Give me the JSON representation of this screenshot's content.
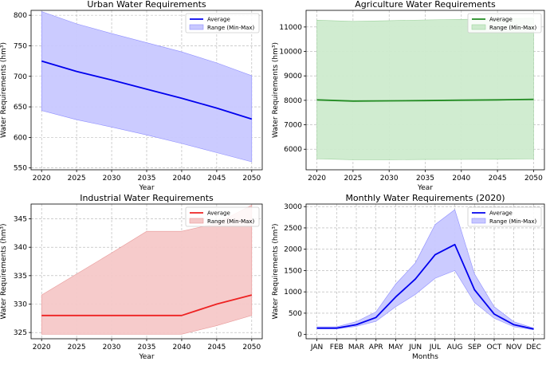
{
  "chart_data": [
    {
      "type": "line",
      "title": "Urban Water Requirements",
      "xlabel": "Year",
      "ylabel": "Water Requirements (hm³)",
      "x": [
        2020,
        2025,
        2030,
        2035,
        2040,
        2045,
        2050
      ],
      "xticks": [
        "2020",
        "2025",
        "2030",
        "2035",
        "2040",
        "2045",
        "2050"
      ],
      "yticks": [
        550,
        600,
        650,
        700,
        750,
        800
      ],
      "xlim": [
        2018.5,
        2051.5
      ],
      "ylim": [
        547,
        808
      ],
      "series": [
        {
          "name": "Average",
          "kind": "line",
          "values": [
            725,
            708,
            694,
            679,
            664,
            648,
            630
          ]
        },
        {
          "name": "Range (Min-Max)",
          "kind": "band",
          "min": [
            644,
            629,
            617,
            604,
            590,
            575,
            560
          ],
          "max": [
            806,
            786,
            770,
            755,
            740,
            722,
            701
          ]
        }
      ],
      "colors": {
        "line": "#0000ee",
        "band": "#c8c8ff",
        "band_edge": "#8f8fff"
      }
    },
    {
      "type": "line",
      "title": "Agriculture Water Requirements",
      "xlabel": "Year",
      "ylabel": "Water Requirements (hm³)",
      "x": [
        2020,
        2025,
        2030,
        2035,
        2040,
        2045,
        2050
      ],
      "xticks": [
        "2020",
        "2025",
        "2030",
        "2035",
        "2040",
        "2045",
        "2050"
      ],
      "yticks": [
        6000,
        7000,
        8000,
        9000,
        10000,
        11000
      ],
      "xlim": [
        2018.5,
        2051.5
      ],
      "ylim": [
        5160,
        11680
      ],
      "series": [
        {
          "name": "Average",
          "kind": "line",
          "values": [
            8020,
            7970,
            7980,
            7990,
            8005,
            8020,
            8040
          ]
        },
        {
          "name": "Range (Min-Max)",
          "kind": "band",
          "min": [
            5610,
            5570,
            5570,
            5580,
            5585,
            5590,
            5600
          ],
          "max": [
            11280,
            11230,
            11260,
            11290,
            11310,
            11330,
            11360
          ]
        }
      ],
      "colors": {
        "line": "#228b22",
        "band": "#cdebcd",
        "band_edge": "#9ed29e"
      }
    },
    {
      "type": "line",
      "title": "Industrial Water Requirements",
      "xlabel": "Year",
      "ylabel": "Water Requirements (hm³)",
      "x": [
        2020,
        2025,
        2030,
        2035,
        2040,
        2045,
        2050
      ],
      "xticks": [
        "2020",
        "2025",
        "2030",
        "2035",
        "2040",
        "2045",
        "2050"
      ],
      "yticks": [
        325,
        330,
        335,
        340,
        345
      ],
      "xlim": [
        2018.5,
        2051.5
      ],
      "ylim": [
        323.9,
        347.6
      ],
      "series": [
        {
          "name": "Average",
          "kind": "line",
          "values": [
            328,
            328,
            328,
            328,
            328,
            330,
            331.6
          ]
        },
        {
          "name": "Range (Min-Max)",
          "kind": "band",
          "min": [
            324.7,
            324.7,
            324.7,
            324.7,
            324.7,
            326.2,
            328
          ],
          "max": [
            331.6,
            335.3,
            339,
            342.8,
            342.8,
            344.2,
            347.4
          ]
        }
      ],
      "colors": {
        "line": "#ee2222",
        "band": "#f5c8c8",
        "band_edge": "#e89a9a"
      }
    },
    {
      "type": "line",
      "title": "Monthly Water Requirements (2020)",
      "xlabel": "Months",
      "ylabel": "Water Requirements (hm³)",
      "x": [
        0,
        1,
        2,
        3,
        4,
        5,
        6,
        7,
        8,
        9,
        10,
        11
      ],
      "xticks": [
        "JAN",
        "FEB",
        "MAR",
        "APR",
        "MAY",
        "JUN",
        "JUL",
        "AUG",
        "SEP",
        "OCT",
        "NOV",
        "DEC"
      ],
      "yticks": [
        0,
        500,
        1000,
        1500,
        2000,
        2500,
        3000
      ],
      "xlim": [
        -0.55,
        11.55
      ],
      "ylim": [
        -100,
        3060
      ],
      "series": [
        {
          "name": "Average",
          "kind": "line",
          "values": [
            150,
            150,
            230,
            400,
            880,
            1300,
            1870,
            2110,
            1050,
            480,
            230,
            130
          ]
        },
        {
          "name": "Range (Min-Max)",
          "kind": "band",
          "min": [
            130,
            130,
            190,
            310,
            650,
            940,
            1320,
            1500,
            750,
            380,
            180,
            110
          ],
          "max": [
            180,
            180,
            300,
            530,
            1180,
            1680,
            2580,
            2930,
            1420,
            650,
            300,
            150
          ]
        }
      ],
      "colors": {
        "line": "#0000ee",
        "band": "#c8c8ff",
        "band_edge": "#8f8fff"
      }
    }
  ]
}
